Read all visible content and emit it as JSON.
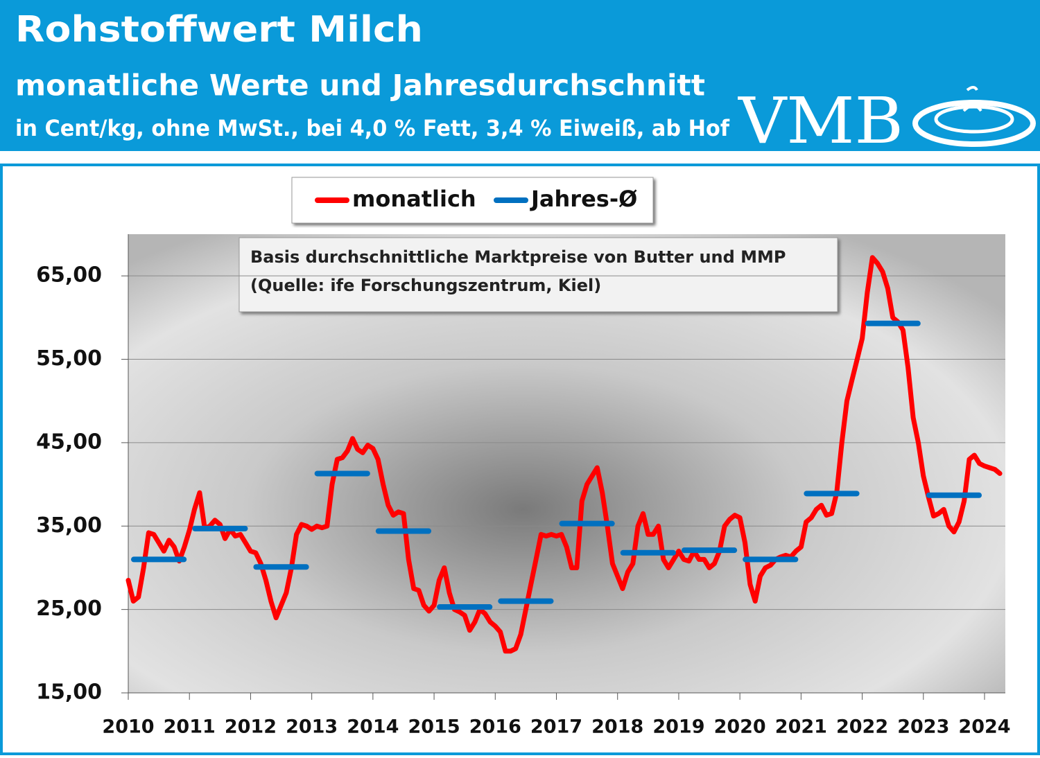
{
  "header": {
    "title": "Rohstoffwert Milch",
    "subtitle": "monatliche Werte und Jahresdurchschnitt",
    "note": "in Cent/kg, ohne MwSt., bei 4,0 % Fett, 3,4 % Eiweiß, ab Hof",
    "logo": "VMB"
  },
  "chart_data": {
    "type": "line",
    "annotation": [
      "Basis durchschnittliche Marktpreise von Butter und MMP",
      "(Quelle: ife Forschungszentrum, Kiel)"
    ],
    "xlim": [
      2010,
      2024.34
    ],
    "xticks": [
      2010,
      2011,
      2012,
      2013,
      2014,
      2015,
      2016,
      2017,
      2018,
      2019,
      2020,
      2021,
      2022,
      2023,
      2024
    ],
    "ylim": [
      15,
      70
    ],
    "yticks": [
      {
        "value": 15,
        "label": "15,00"
      },
      {
        "value": 25,
        "label": "25,00"
      },
      {
        "value": 35,
        "label": "35,00"
      },
      {
        "value": 45,
        "label": "45,00"
      },
      {
        "value": 55,
        "label": "55,00"
      },
      {
        "value": 65,
        "label": "65,00"
      }
    ],
    "grid": true,
    "legend": "top",
    "series": [
      {
        "name": "monatlich",
        "color": "#ff0000",
        "x": [
          2010,
          2010.083,
          2010.167,
          2010.25,
          2010.333,
          2010.417,
          2010.5,
          2010.583,
          2010.667,
          2010.75,
          2010.833,
          2010.917,
          2011,
          2011.083,
          2011.167,
          2011.25,
          2011.333,
          2011.417,
          2011.5,
          2011.583,
          2011.667,
          2011.75,
          2011.833,
          2011.917,
          2012,
          2012.083,
          2012.167,
          2012.25,
          2012.333,
          2012.417,
          2012.5,
          2012.583,
          2012.667,
          2012.75,
          2012.833,
          2012.917,
          2013,
          2013.083,
          2013.167,
          2013.25,
          2013.333,
          2013.417,
          2013.5,
          2013.583,
          2013.667,
          2013.75,
          2013.833,
          2013.917,
          2014,
          2014.083,
          2014.167,
          2014.25,
          2014.333,
          2014.417,
          2014.5,
          2014.583,
          2014.667,
          2014.75,
          2014.833,
          2014.917,
          2015,
          2015.083,
          2015.167,
          2015.25,
          2015.333,
          2015.417,
          2015.5,
          2015.583,
          2015.667,
          2015.75,
          2015.833,
          2015.917,
          2016,
          2016.083,
          2016.167,
          2016.25,
          2016.333,
          2016.417,
          2016.5,
          2016.583,
          2016.667,
          2016.75,
          2016.833,
          2016.917,
          2017,
          2017.083,
          2017.167,
          2017.25,
          2017.333,
          2017.417,
          2017.5,
          2017.583,
          2017.667,
          2017.75,
          2017.833,
          2017.917,
          2018,
          2018.083,
          2018.167,
          2018.25,
          2018.333,
          2018.417,
          2018.5,
          2018.583,
          2018.667,
          2018.75,
          2018.833,
          2018.917,
          2019,
          2019.083,
          2019.167,
          2019.25,
          2019.333,
          2019.417,
          2019.5,
          2019.583,
          2019.667,
          2019.75,
          2019.833,
          2019.917,
          2020,
          2020.083,
          2020.167,
          2020.25,
          2020.333,
          2020.417,
          2020.5,
          2020.583,
          2020.667,
          2020.75,
          2020.833,
          2020.917,
          2021,
          2021.083,
          2021.167,
          2021.25,
          2021.333,
          2021.417,
          2021.5,
          2021.583,
          2021.667,
          2021.75,
          2021.833,
          2021.917,
          2022,
          2022.083,
          2022.167,
          2022.25,
          2022.333,
          2022.417,
          2022.5,
          2022.583,
          2022.667,
          2022.75,
          2022.833,
          2022.917,
          2023,
          2023.083,
          2023.167,
          2023.25,
          2023.333,
          2023.417,
          2023.5,
          2023.583,
          2023.667,
          2023.75,
          2023.833,
          2023.917,
          2024,
          2024.083,
          2024.167,
          2024.25
        ],
        "values": [
          28.5,
          26.0,
          26.5,
          30,
          34.2,
          34.0,
          33,
          32,
          33.3,
          32.5,
          30.8,
          32.5,
          34.5,
          37,
          39,
          34.7,
          35,
          35.7,
          35.2,
          33.5,
          34.6,
          33.8,
          34,
          33,
          32,
          31.8,
          30.5,
          28.5,
          26,
          24,
          25.5,
          27,
          30,
          34,
          35.2,
          35,
          34.6,
          35,
          34.8,
          35,
          40,
          43,
          43.2,
          44,
          45.5,
          44.2,
          43.8,
          44.7,
          44.3,
          43,
          40,
          37.5,
          36.3,
          36.7,
          36.5,
          31,
          27.5,
          27.3,
          25.5,
          24.8,
          25.5,
          28.5,
          30,
          27,
          25,
          24.7,
          24.3,
          22.5,
          23.5,
          25,
          24.5,
          23.5,
          23,
          22.3,
          20,
          20,
          20.3,
          22,
          25,
          28,
          31,
          34,
          33.8,
          34,
          33.8,
          34,
          32.5,
          30,
          30,
          38,
          40,
          41,
          42,
          39,
          35,
          30.5,
          29,
          27.5,
          29.5,
          30.5,
          35,
          36.5,
          34,
          34,
          35,
          31,
          30,
          31,
          32,
          31,
          30.8,
          32,
          31,
          31,
          30,
          30.5,
          32,
          35,
          35.8,
          36.3,
          36,
          33,
          28,
          26,
          29,
          30,
          30.3,
          31,
          31.3,
          31.5,
          31.3,
          32,
          32.5,
          35.5,
          36,
          37,
          37.5,
          36.3,
          36.5,
          39,
          45,
          50,
          52.5,
          55,
          57.5,
          63,
          67.2,
          66.5,
          65.5,
          63.5,
          60,
          59.5,
          58.5,
          54,
          48,
          45,
          41,
          38.5,
          36.2,
          36.5,
          37,
          35,
          34.3,
          35.5,
          38,
          43,
          43.5,
          42.5,
          42.2,
          42,
          41.8,
          41.3
        ]
      },
      {
        "name": "Jahres-Ø",
        "color": "#0070c0",
        "x": [
          2010,
          2011,
          2012,
          2013,
          2014,
          2015,
          2016,
          2017,
          2018,
          2019,
          2020,
          2021,
          2022,
          2023
        ],
        "values": [
          31.0,
          34.7,
          30.1,
          41.3,
          34.4,
          25.3,
          26.0,
          35.3,
          31.8,
          32.1,
          31.0,
          38.9,
          59.3,
          38.7
        ]
      }
    ]
  }
}
